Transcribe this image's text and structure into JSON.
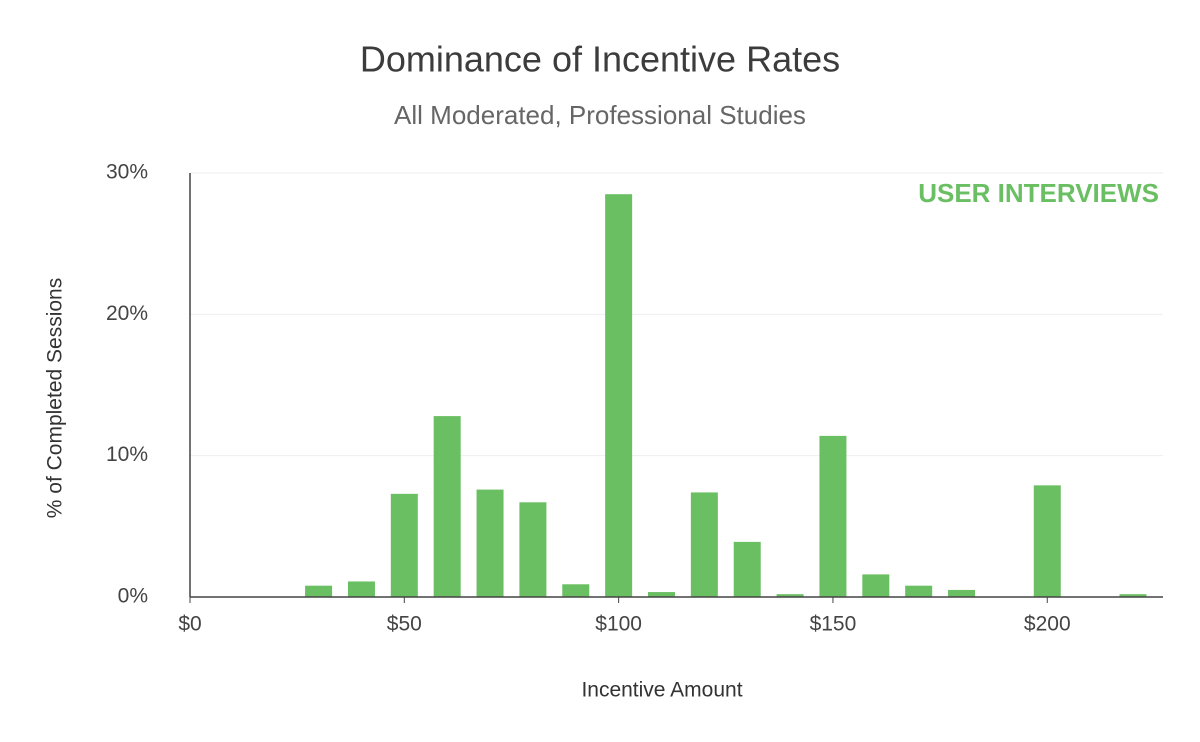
{
  "chart_data": {
    "type": "bar",
    "title": "Dominance of Incentive Rates",
    "subtitle": "All Moderated, Professional Studies",
    "x_label": "Incentive Amount",
    "y_label": "% of Completed Sessions",
    "annotation": "USER INTERVIEWS",
    "x": [
      30,
      40,
      50,
      60,
      70,
      80,
      90,
      100,
      110,
      120,
      130,
      140,
      150,
      160,
      170,
      180,
      200,
      220
    ],
    "values": [
      0.8,
      1.1,
      7.3,
      12.8,
      7.6,
      6.7,
      0.9,
      28.5,
      0.35,
      7.4,
      3.9,
      0.2,
      11.4,
      1.6,
      0.8,
      0.5,
      7.9,
      0.2
    ],
    "color": "#6abf63",
    "xlim": [
      0,
      227
    ],
    "ylim": [
      0,
      30
    ],
    "xticks": [
      {
        "value": 0,
        "label": "$0"
      },
      {
        "value": 50,
        "label": "$50"
      },
      {
        "value": 100,
        "label": "$100"
      },
      {
        "value": 150,
        "label": "$150"
      },
      {
        "value": 200,
        "label": "$200"
      }
    ],
    "yticks": [
      {
        "value": 0,
        "label": "0%"
      },
      {
        "value": 10,
        "label": "10%"
      },
      {
        "value": 20,
        "label": "20%"
      },
      {
        "value": 30,
        "label": "30%"
      }
    ],
    "grid": true
  }
}
